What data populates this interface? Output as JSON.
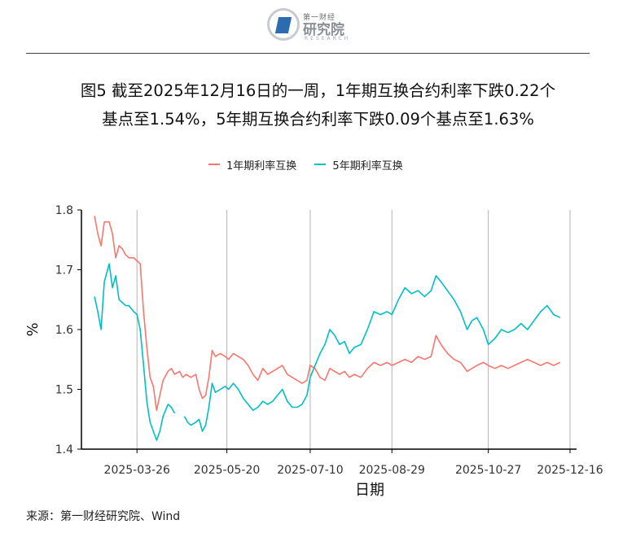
{
  "header": {
    "logo_top": "第一财经",
    "logo_main": "研究院",
    "logo_sub": "RESEARCH"
  },
  "title_line1": "图5  截至2025年12月16日的一周，1年期互换合约利率下跌0.22个",
  "title_line2": "基点至1.54%，5年期互换合约利率下跌0.09个基点至1.63%",
  "source": "来源：第一财经研究院、Wind",
  "colors": {
    "series1": "#f8766d",
    "series2": "#00bfc4",
    "axis": "#000000",
    "grid": "#b3b3b3"
  },
  "chart_data": {
    "type": "line",
    "xlabel": "日期",
    "ylabel": "%",
    "ylim": [
      1.4,
      1.8
    ],
    "yticks": [
      "1.4",
      "1.5",
      "1.6",
      "1.7",
      "1.8"
    ],
    "xlim": [
      "2025-02-20",
      "2025-12-20"
    ],
    "xticks": [
      "2025-03-26",
      "2025-05-20",
      "2025-07-10",
      "2025-08-29",
      "2025-10-27",
      "2025-12-16"
    ],
    "grid": "vertical",
    "legend_position": "top",
    "series": [
      {
        "name": "1年期利率互换",
        "color": "#f8766d",
        "points": [
          [
            "2025-02-28",
            1.79
          ],
          [
            "2025-03-02",
            1.76
          ],
          [
            "2025-03-04",
            1.74
          ],
          [
            "2025-03-06",
            1.78
          ],
          [
            "2025-03-09",
            1.78
          ],
          [
            "2025-03-11",
            1.76
          ],
          [
            "2025-03-13",
            1.72
          ],
          [
            "2025-03-15",
            1.74
          ],
          [
            "2025-03-17",
            1.735
          ],
          [
            "2025-03-19",
            1.725
          ],
          [
            "2025-03-21",
            1.72
          ],
          [
            "2025-03-24",
            1.72
          ],
          [
            "2025-03-26",
            1.715
          ],
          [
            "2025-03-28",
            1.71
          ],
          [
            "2025-03-30",
            1.63
          ],
          [
            "2025-04-01",
            1.57
          ],
          [
            "2025-04-03",
            1.52
          ],
          [
            "2025-04-05",
            1.505
          ],
          [
            "2025-04-07",
            1.465
          ],
          [
            "2025-04-09",
            1.49
          ],
          [
            "2025-04-11",
            1.515
          ],
          [
            "2025-04-14",
            1.53
          ],
          [
            "2025-04-16",
            1.535
          ],
          [
            "2025-04-18",
            1.525
          ],
          [
            "2025-04-21",
            1.53
          ],
          [
            "2025-04-23",
            1.52
          ],
          [
            "2025-04-25",
            1.525
          ],
          [
            "2025-04-28",
            1.52
          ],
          [
            "2025-05-01",
            1.525
          ],
          [
            "2025-05-03",
            1.5
          ],
          [
            "2025-05-05",
            1.485
          ],
          [
            "2025-05-07",
            1.49
          ],
          [
            "2025-05-09",
            1.52
          ],
          [
            "2025-05-11",
            1.565
          ],
          [
            "2025-05-13",
            1.555
          ],
          [
            "2025-05-16",
            1.56
          ],
          [
            "2025-05-19",
            1.555
          ],
          [
            "2025-05-21",
            1.55
          ],
          [
            "2025-05-24",
            1.56
          ],
          [
            "2025-05-27",
            1.555
          ],
          [
            "2025-05-30",
            1.55
          ],
          [
            "2025-06-02",
            1.54
          ],
          [
            "2025-06-05",
            1.525
          ],
          [
            "2025-06-08",
            1.515
          ],
          [
            "2025-06-11",
            1.535
          ],
          [
            "2025-06-14",
            1.525
          ],
          [
            "2025-06-17",
            1.53
          ],
          [
            "2025-06-20",
            1.535
          ],
          [
            "2025-06-23",
            1.54
          ],
          [
            "2025-06-26",
            1.525
          ],
          [
            "2025-06-29",
            1.52
          ],
          [
            "2025-07-02",
            1.515
          ],
          [
            "2025-07-05",
            1.51
          ],
          [
            "2025-07-08",
            1.515
          ],
          [
            "2025-07-10",
            1.54
          ],
          [
            "2025-07-13",
            1.535
          ],
          [
            "2025-07-16",
            1.52
          ],
          [
            "2025-07-19",
            1.515
          ],
          [
            "2025-07-22",
            1.535
          ],
          [
            "2025-07-25",
            1.53
          ],
          [
            "2025-07-28",
            1.525
          ],
          [
            "2025-07-31",
            1.53
          ],
          [
            "2025-08-03",
            1.52
          ],
          [
            "2025-08-06",
            1.525
          ],
          [
            "2025-08-10",
            1.52
          ],
          [
            "2025-08-14",
            1.535
          ],
          [
            "2025-08-18",
            1.545
          ],
          [
            "2025-08-22",
            1.54
          ],
          [
            "2025-08-26",
            1.545
          ],
          [
            "2025-08-29",
            1.54
          ],
          [
            "2025-09-02",
            1.545
          ],
          [
            "2025-09-06",
            1.55
          ],
          [
            "2025-09-10",
            1.545
          ],
          [
            "2025-09-14",
            1.555
          ],
          [
            "2025-09-18",
            1.55
          ],
          [
            "2025-09-22",
            1.555
          ],
          [
            "2025-09-25",
            1.59
          ],
          [
            "2025-09-28",
            1.575
          ],
          [
            "2025-10-02",
            1.56
          ],
          [
            "2025-10-06",
            1.55
          ],
          [
            "2025-10-10",
            1.545
          ],
          [
            "2025-10-14",
            1.53
          ],
          [
            "2025-10-17",
            1.535
          ],
          [
            "2025-10-20",
            1.54
          ],
          [
            "2025-10-24",
            1.545
          ],
          [
            "2025-10-27",
            1.54
          ],
          [
            "2025-10-31",
            1.535
          ],
          [
            "2025-11-04",
            1.54
          ],
          [
            "2025-11-08",
            1.535
          ],
          [
            "2025-11-12",
            1.54
          ],
          [
            "2025-11-16",
            1.545
          ],
          [
            "2025-11-20",
            1.55
          ],
          [
            "2025-11-24",
            1.545
          ],
          [
            "2025-11-28",
            1.54
          ],
          [
            "2025-12-02",
            1.545
          ],
          [
            "2025-12-06",
            1.54
          ],
          [
            "2025-12-10",
            1.545
          ],
          [
            "2025-12-16",
            1.54
          ]
        ]
      },
      {
        "name": "5年期利率互换",
        "color": "#00bfc4",
        "points": [
          [
            "2025-02-28",
            1.655
          ],
          [
            "2025-03-02",
            1.63
          ],
          [
            "2025-03-04",
            1.6
          ],
          [
            "2025-03-06",
            1.68
          ],
          [
            "2025-03-09",
            1.71
          ],
          [
            "2025-03-11",
            1.67
          ],
          [
            "2025-03-13",
            1.69
          ],
          [
            "2025-03-15",
            1.65
          ],
          [
            "2025-03-17",
            1.645
          ],
          [
            "2025-03-19",
            1.64
          ],
          [
            "2025-03-21",
            1.64
          ],
          [
            "2025-03-24",
            1.63
          ],
          [
            "2025-03-26",
            1.625
          ],
          [
            "2025-03-28",
            1.6
          ],
          [
            "2025-03-30",
            1.54
          ],
          [
            "2025-04-01",
            1.48
          ],
          [
            "2025-04-03",
            1.445
          ],
          [
            "2025-04-05",
            1.43
          ],
          [
            "2025-04-07",
            1.415
          ],
          [
            "2025-04-09",
            1.43
          ],
          [
            "2025-04-11",
            1.455
          ],
          [
            "2025-04-14",
            1.475
          ],
          [
            "2025-04-16",
            1.47
          ],
          [
            "2025-04-18",
            1.46
          ],
          [
            "2025-04-24",
            1.455
          ],
          [
            "2025-04-26",
            1.445
          ],
          [
            "2025-04-28",
            1.44
          ],
          [
            "2025-05-01",
            1.445
          ],
          [
            "2025-05-03",
            1.45
          ],
          [
            "2025-05-05",
            1.43
          ],
          [
            "2025-05-07",
            1.44
          ],
          [
            "2025-05-09",
            1.47
          ],
          [
            "2025-05-11",
            1.51
          ],
          [
            "2025-05-13",
            1.495
          ],
          [
            "2025-05-16",
            1.5
          ],
          [
            "2025-05-19",
            1.505
          ],
          [
            "2025-05-21",
            1.5
          ],
          [
            "2025-05-24",
            1.51
          ],
          [
            "2025-05-27",
            1.5
          ],
          [
            "2025-05-30",
            1.485
          ],
          [
            "2025-06-02",
            1.475
          ],
          [
            "2025-06-05",
            1.465
          ],
          [
            "2025-06-08",
            1.47
          ],
          [
            "2025-06-11",
            1.48
          ],
          [
            "2025-06-14",
            1.475
          ],
          [
            "2025-06-17",
            1.48
          ],
          [
            "2025-06-20",
            1.49
          ],
          [
            "2025-06-23",
            1.5
          ],
          [
            "2025-06-26",
            1.48
          ],
          [
            "2025-06-29",
            1.47
          ],
          [
            "2025-07-02",
            1.47
          ],
          [
            "2025-07-05",
            1.475
          ],
          [
            "2025-07-08",
            1.49
          ],
          [
            "2025-07-10",
            1.52
          ],
          [
            "2025-07-13",
            1.54
          ],
          [
            "2025-07-16",
            1.56
          ],
          [
            "2025-07-19",
            1.575
          ],
          [
            "2025-07-22",
            1.6
          ],
          [
            "2025-07-25",
            1.59
          ],
          [
            "2025-07-28",
            1.575
          ],
          [
            "2025-07-31",
            1.58
          ],
          [
            "2025-08-03",
            1.56
          ],
          [
            "2025-08-06",
            1.57
          ],
          [
            "2025-08-10",
            1.575
          ],
          [
            "2025-08-14",
            1.6
          ],
          [
            "2025-08-18",
            1.63
          ],
          [
            "2025-08-22",
            1.625
          ],
          [
            "2025-08-26",
            1.63
          ],
          [
            "2025-08-29",
            1.625
          ],
          [
            "2025-09-02",
            1.65
          ],
          [
            "2025-09-06",
            1.67
          ],
          [
            "2025-09-10",
            1.66
          ],
          [
            "2025-09-14",
            1.665
          ],
          [
            "2025-09-18",
            1.655
          ],
          [
            "2025-09-22",
            1.665
          ],
          [
            "2025-09-25",
            1.69
          ],
          [
            "2025-09-28",
            1.68
          ],
          [
            "2025-10-02",
            1.665
          ],
          [
            "2025-10-06",
            1.65
          ],
          [
            "2025-10-10",
            1.63
          ],
          [
            "2025-10-14",
            1.6
          ],
          [
            "2025-10-17",
            1.615
          ],
          [
            "2025-10-20",
            1.62
          ],
          [
            "2025-10-24",
            1.6
          ],
          [
            "2025-10-27",
            1.575
          ],
          [
            "2025-10-31",
            1.585
          ],
          [
            "2025-11-04",
            1.6
          ],
          [
            "2025-11-08",
            1.595
          ],
          [
            "2025-11-12",
            1.6
          ],
          [
            "2025-11-16",
            1.61
          ],
          [
            "2025-11-20",
            1.6
          ],
          [
            "2025-11-24",
            1.615
          ],
          [
            "2025-11-28",
            1.63
          ],
          [
            "2025-12-02",
            1.64
          ],
          [
            "2025-12-06",
            1.625
          ],
          [
            "2025-12-10",
            1.62
          ],
          [
            "2025-12-16",
            1.63
          ]
        ]
      }
    ]
  }
}
